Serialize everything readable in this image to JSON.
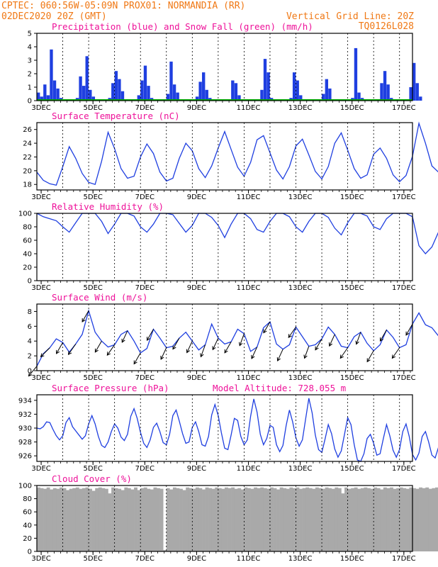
{
  "header": {
    "left_line1": "CPTEC:   060:56W-05:09N  PROX01: NORMANDIA (RR)",
    "left_line2": "02DEC2020 20Z (GMT)",
    "right_line1": "Vertical Grid Line: 20Z",
    "right_line2": "TQ0126L028"
  },
  "colors": {
    "header": "#f07814",
    "panel_title": "#ee1199",
    "series": "#1f3fe0",
    "snow": "#00b000",
    "cloud": "#a9a9a9",
    "wind_arrow": "#000000"
  },
  "x_tick_labels": [
    "3DEC",
    "5DEC",
    "7DEC",
    "9DEC",
    "11DEC",
    "13DEC",
    "15DEC",
    "17DEC"
  ],
  "chart_data": [
    {
      "type": "bar",
      "title": "Precipitation (blue) and Snow Fall (green) (mm/h)",
      "ylim": [
        0,
        5
      ],
      "yticks": [
        0,
        1,
        2,
        3,
        4,
        5
      ],
      "x_start": "02DEC2020 20Z",
      "x_step_hours": 3,
      "series": [
        {
          "name": "Precipitation",
          "values": [
            0.6,
            0.3,
            1.2,
            0.4,
            3.8,
            1.5,
            0.9,
            0.2,
            0,
            0.1,
            0,
            0.1,
            0.2,
            1.8,
            1.1,
            3.3,
            0.8,
            0.3,
            0,
            0,
            0,
            0,
            0.2,
            1.3,
            2.2,
            1.6,
            0.7,
            0.1,
            0,
            0,
            0,
            0.4,
            1.5,
            2.6,
            1.1,
            0.2,
            0,
            0,
            0,
            0,
            0.5,
            2.9,
            1.2,
            0.6,
            0.1,
            0,
            0,
            0,
            0,
            0.3,
            1.4,
            2.1,
            0.8,
            0.2,
            0,
            0,
            0,
            0,
            0,
            0,
            1.5,
            1.3,
            0.4,
            0,
            0,
            0,
            0,
            0,
            0,
            0.8,
            3.1,
            2.1,
            0.2,
            0,
            0,
            0,
            0,
            0,
            0.2,
            2.1,
            1.5,
            0.4,
            0,
            0,
            0,
            0,
            0,
            0,
            0.5,
            1.6,
            0.9,
            0,
            0,
            0,
            0,
            0,
            0,
            0.2,
            3.9,
            0.6,
            0.2,
            0,
            0,
            0,
            0,
            0,
            1.3,
            2.2,
            1.2,
            0.2,
            0,
            0,
            0,
            0,
            0,
            1.0,
            2.8,
            1.3,
            0.3,
            0,
            0,
            0,
            0,
            0,
            0,
            1.8,
            1.1,
            0.3,
            0,
            0,
            0,
            0,
            0.2,
            1.6,
            2.1,
            0.6
          ]
        },
        {
          "name": "Snow Fall",
          "values": [
            0,
            0,
            0,
            0,
            0,
            0,
            0,
            0,
            0,
            0,
            0,
            0,
            0,
            0,
            0,
            0,
            0,
            0,
            0,
            0,
            0,
            0,
            0,
            0,
            0,
            0,
            0,
            0,
            0,
            0,
            0,
            0,
            0,
            0,
            0,
            0,
            0,
            0,
            0,
            0,
            0,
            0,
            0,
            0,
            0,
            0,
            0,
            0,
            0,
            0,
            0,
            0,
            0,
            0,
            0,
            0,
            0,
            0,
            0,
            0,
            0,
            0,
            0,
            0,
            0,
            0,
            0,
            0,
            0,
            0,
            0,
            0,
            0,
            0,
            0,
            0,
            0,
            0,
            0,
            0,
            0,
            0,
            0,
            0,
            0,
            0,
            0,
            0,
            0,
            0,
            0,
            0,
            0,
            0,
            0,
            0,
            0,
            0,
            0,
            0,
            0,
            0,
            0,
            0,
            0,
            0,
            0,
            0,
            0,
            0,
            0,
            0,
            0,
            0,
            0,
            0,
            0,
            0,
            0,
            0,
            0,
            0,
            0,
            0,
            0,
            0,
            0,
            0,
            0,
            0,
            0,
            0,
            0,
            0,
            0,
            0,
            0,
            0,
            0,
            0
          ]
        }
      ]
    },
    {
      "type": "line",
      "title": "Surface Temperature (nC)",
      "ylim": [
        17.2,
        27
      ],
      "yticks": [
        18,
        20,
        22,
        24,
        26
      ],
      "x_start": "02DEC2020 20Z",
      "x_step_hours": 6,
      "series": [
        {
          "values": [
            19.8,
            18.6,
            18.1,
            17.9,
            20.6,
            23.5,
            21.8,
            19.6,
            18.3,
            18.0,
            21.4,
            25.6,
            23.2,
            20.3,
            18.9,
            19.2,
            22.0,
            23.9,
            22.5,
            19.8,
            18.5,
            18.9,
            21.8,
            24.0,
            22.9,
            20.3,
            19.0,
            20.7,
            23.3,
            25.7,
            23.1,
            20.5,
            19.2,
            21.2,
            24.5,
            25.1,
            22.6,
            20.1,
            18.8,
            20.6,
            23.6,
            24.6,
            22.3,
            19.9,
            18.8,
            20.6,
            24.0,
            25.5,
            23.0,
            20.3,
            18.9,
            19.4,
            22.4,
            23.3,
            21.8,
            19.4,
            18.4,
            19.3,
            22.1,
            26.9,
            24.0,
            20.7,
            19.8,
            21.6,
            24.3,
            26.8,
            25.1,
            21.9,
            20.6,
            22.3,
            24.2,
            25.0,
            23.0,
            20.7,
            19.4,
            20.6,
            23.5,
            24.6,
            22.4,
            19.9,
            18.6,
            20.3,
            23.7,
            24.0,
            22.0,
            19.6,
            18.5,
            20.8,
            24.2,
            25.2,
            23.8
          ]
        }
      ]
    },
    {
      "type": "line",
      "title": "Relative Humidity (%)",
      "ylim": [
        0,
        100
      ],
      "yticks": [
        0,
        20,
        40,
        60,
        80,
        100
      ],
      "x_start": "02DEC2020 20Z",
      "x_step_hours": 6,
      "series": [
        {
          "values": [
            100,
            95,
            92,
            89,
            80,
            72,
            86,
            100,
            100,
            100,
            88,
            70,
            84,
            100,
            100,
            96,
            80,
            72,
            84,
            100,
            100,
            98,
            85,
            72,
            82,
            100,
            100,
            94,
            82,
            64,
            84,
            100,
            100,
            92,
            76,
            72,
            88,
            100,
            100,
            95,
            80,
            72,
            88,
            100,
            100,
            94,
            78,
            68,
            86,
            100,
            100,
            96,
            80,
            76,
            92,
            100,
            100,
            100,
            95,
            52,
            40,
            50,
            72,
            80,
            70,
            58,
            64,
            82,
            96,
            100,
            100,
            86,
            76,
            90,
            100,
            100,
            92,
            80,
            84,
            96,
            100,
            100,
            90,
            80,
            88,
            100,
            100,
            98,
            82,
            64,
            78,
            100
          ]
        }
      ]
    },
    {
      "type": "line",
      "title": "Surface Wind (m/s)",
      "ylim": [
        0,
        9
      ],
      "yticks": [
        0,
        2,
        4,
        6,
        8
      ],
      "x_start": "02DEC2020 20Z",
      "x_step_hours": 6,
      "series": [
        {
          "values": [
            0.6,
            2.3,
            3.1,
            4.3,
            3.8,
            2.5,
            3.6,
            4.9,
            8.1,
            5.2,
            4.0,
            3.2,
            3.5,
            4.9,
            5.4,
            4.0,
            2.4,
            3.0,
            5.6,
            4.4,
            3.1,
            3.3,
            4.4,
            5.2,
            4.0,
            2.8,
            3.5,
            6.3,
            4.4,
            3.6,
            3.9,
            5.6,
            5.0,
            2.6,
            3.2,
            5.8,
            6.6,
            3.6,
            2.9,
            3.5,
            5.9,
            4.6,
            3.3,
            3.5,
            4.3,
            5.9,
            4.9,
            3.3,
            3.1,
            4.6,
            5.2,
            3.7,
            2.7,
            3.5,
            5.5,
            4.5,
            3.1,
            3.5,
            6.3,
            7.8,
            6.2,
            5.8,
            4.7,
            3.3,
            4.8,
            6.3,
            5.6,
            4.1,
            3.5,
            5.3,
            4.4,
            3.0,
            3.5,
            4.6,
            6.8,
            4.4,
            2.8,
            3.6,
            5.6,
            5.0,
            3.1,
            3.3,
            4.5,
            5.9,
            4.7,
            3.2,
            3.1,
            5.1,
            6.8,
            4.4,
            2.6
          ]
        }
      ]
    },
    {
      "type": "line",
      "title": "Surface Pressure (hPa)",
      "annotation": "Model Altitude: 728.055 m",
      "ylim": [
        925.2,
        934.8
      ],
      "yticks": [
        926,
        928,
        930,
        932,
        934
      ],
      "x_start": "02DEC2020 20Z",
      "x_step_hours": 3,
      "series": [
        {
          "values": [
            930.0,
            929.9,
            930.2,
            930.9,
            930.8,
            929.8,
            928.9,
            928.3,
            928.9,
            930.8,
            931.5,
            930.2,
            929.6,
            929.0,
            928.4,
            928.9,
            930.6,
            931.8,
            930.6,
            928.8,
            927.5,
            927.2,
            928.0,
            929.5,
            930.6,
            930.0,
            928.7,
            928.2,
            929.1,
            931.7,
            932.8,
            931.4,
            929.4,
            927.8,
            927.2,
            928.3,
            930.1,
            930.7,
            929.5,
            927.9,
            927.6,
            929.1,
            931.8,
            932.6,
            931.0,
            929.2,
            927.8,
            928.0,
            930.1,
            930.9,
            929.5,
            927.6,
            927.4,
            928.8,
            931.9,
            933.4,
            931.8,
            929.3,
            927.1,
            926.9,
            929.0,
            931.4,
            931.1,
            928.8,
            927.6,
            928.3,
            931.7,
            934.2,
            932.3,
            929.1,
            927.6,
            928.5,
            930.4,
            930.1,
            927.6,
            926.6,
            927.5,
            930.4,
            932.6,
            930.9,
            928.6,
            927.4,
            928.3,
            931.3,
            934.3,
            932.2,
            929.0,
            926.9,
            926.5,
            928.4,
            930.5,
            929.2,
            927.0,
            925.8,
            926.7,
            929.1,
            931.5,
            930.5,
            927.6,
            925.4,
            925.0,
            926.3,
            928.5,
            929.1,
            927.8,
            926.1,
            926.3,
            928.5,
            930.5,
            928.9,
            926.8,
            925.8,
            926.9,
            929.5,
            930.6,
            928.8,
            926.2,
            925.4,
            926.4,
            928.8,
            929.5,
            928.0,
            926.1,
            925.7,
            927.2,
            929.8,
            930.3,
            928.6,
            926.3,
            925.4,
            926.0,
            928.4,
            929.9,
            928.2,
            925.7,
            925.2,
            925.4,
            927.6
          ]
        }
      ]
    },
    {
      "type": "area",
      "title": "Cloud Cover (%)",
      "ylim": [
        0,
        100
      ],
      "yticks": [
        0,
        20,
        40,
        60,
        80,
        100
      ],
      "x_start": "02DEC2020 20Z",
      "x_step_hours": 3,
      "series": [
        {
          "values": [
            97,
            96,
            95,
            97,
            94,
            96,
            95,
            97,
            96,
            93,
            95,
            96,
            97,
            95,
            96,
            97,
            95,
            92,
            96,
            97,
            96,
            95,
            88,
            97,
            96,
            95,
            93,
            97,
            96,
            94,
            97,
            93,
            96,
            97,
            95,
            94,
            97,
            96,
            95,
            2,
            96,
            94,
            97,
            96,
            95,
            93,
            97,
            96,
            95,
            97,
            96,
            94,
            97,
            96,
            95,
            97,
            96,
            95,
            97,
            96,
            97,
            95,
            96,
            94,
            97,
            96,
            95,
            97,
            96,
            97,
            96,
            95,
            97,
            96,
            94,
            97,
            96,
            95,
            97,
            96,
            97,
            95,
            96,
            97,
            96,
            95,
            97,
            96,
            95,
            97,
            96,
            95,
            97,
            96,
            88,
            97,
            95,
            96,
            97,
            95,
            96,
            97,
            96,
            95,
            97,
            96,
            94,
            97,
            96,
            97,
            95,
            96,
            97,
            96,
            95,
            97,
            96,
            95,
            97,
            96,
            97,
            95,
            96,
            97,
            96,
            95,
            97,
            96,
            95,
            97,
            96,
            95,
            97,
            96,
            95,
            97,
            96,
            95,
            97,
            96
          ]
        }
      ]
    },
    {
      "type": "wind_vectors",
      "title": "Surface Wind direction",
      "x_start": "02DEC2020 20Z",
      "x_step_hours": 12,
      "series": [
        {
          "name": "direction_deg",
          "values": [
            50,
            45,
            60,
            55,
            60,
            60,
            55,
            65,
            60,
            60,
            65,
            60,
            65,
            70,
            65,
            60,
            70,
            65,
            60,
            65,
            55,
            70,
            60,
            65,
            55,
            70,
            60,
            60,
            55,
            60
          ]
        }
      ]
    }
  ]
}
